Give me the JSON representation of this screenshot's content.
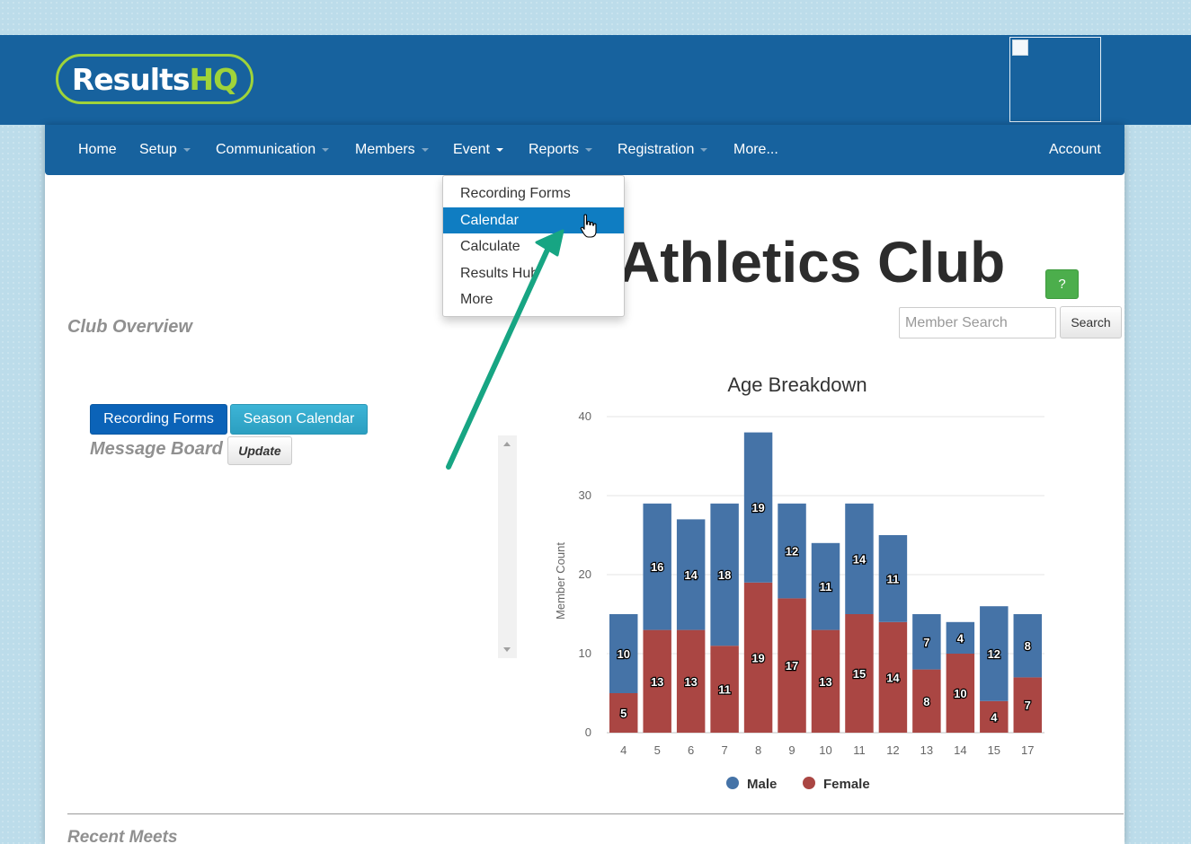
{
  "header": {
    "logo_text_a": "Results",
    "logo_text_b": "HQ"
  },
  "nav": {
    "items": [
      {
        "label": "Home",
        "caret": false
      },
      {
        "label": "Setup",
        "caret": true
      },
      {
        "label": "Communication",
        "caret": true
      },
      {
        "label": "Members",
        "caret": true
      },
      {
        "label": "Event",
        "caret": true,
        "open": true
      },
      {
        "label": "Reports",
        "caret": true
      },
      {
        "label": "Registration",
        "caret": true
      },
      {
        "label": "More...",
        "caret": false
      }
    ],
    "account": "Account"
  },
  "event_menu": {
    "items": [
      "Recording Forms",
      "Calendar",
      "Calculate",
      "Results Hub",
      "More"
    ],
    "highlighted": "Calendar"
  },
  "page": {
    "club_title": "Athletics Club",
    "help_label": "?",
    "search_placeholder": "Member Search",
    "search_button": "Search",
    "club_overview": "Club Overview",
    "recording_forms_button": "Recording Forms",
    "season_calendar_button": "Season Calendar",
    "message_board": "Message Board",
    "update_button": "Update",
    "recent_meets": "Recent Meets"
  },
  "colors": {
    "male": "#4573a7",
    "female": "#aa4643",
    "annotation_arrow": "#17a583"
  },
  "chart_data": {
    "type": "bar",
    "stacked": true,
    "title": "Age Breakdown",
    "xlabel": "",
    "ylabel": "Member Count",
    "categories": [
      "4",
      "5",
      "6",
      "7",
      "8",
      "9",
      "10",
      "11",
      "12",
      "13",
      "14",
      "15",
      "17"
    ],
    "series": [
      {
        "name": "Female",
        "values": [
          5,
          13,
          13,
          11,
          19,
          17,
          13,
          15,
          14,
          8,
          10,
          4,
          7
        ]
      },
      {
        "name": "Male",
        "values": [
          10,
          16,
          14,
          18,
          19,
          12,
          11,
          14,
          11,
          7,
          4,
          12,
          8
        ]
      }
    ],
    "ylim": [
      0,
      40
    ],
    "yticks": [
      0,
      10,
      20,
      30,
      40
    ],
    "grid": true,
    "legend": "bottom-center",
    "data_labels": true
  }
}
